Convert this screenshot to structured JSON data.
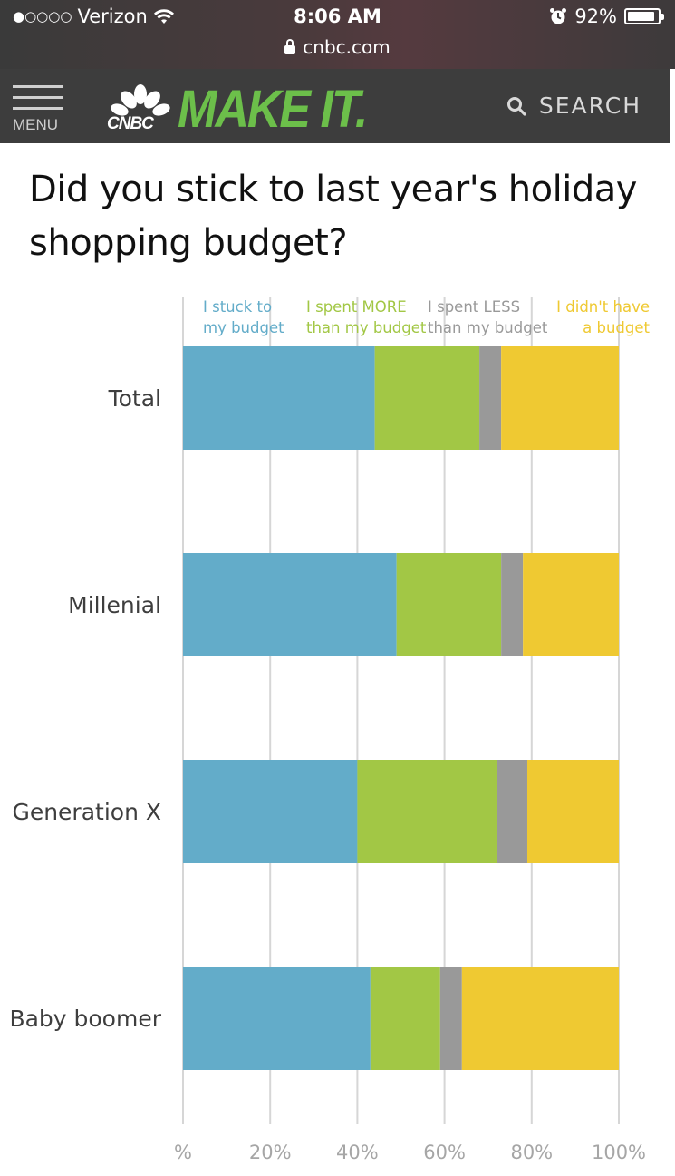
{
  "status_bar": {
    "signal": "●○○○○",
    "carrier": "Verizon",
    "time": "8:06 AM",
    "battery_text": "92%",
    "battery_level": 0.92,
    "url": "cnbc.com"
  },
  "header": {
    "menu_label": "MENU",
    "logo_network": "CNBC",
    "logo_text": "MAKE IT.",
    "search_label": "SEARCH",
    "colors": {
      "background": "#3d3d3d",
      "logo_green": "#6cbf4a"
    }
  },
  "chart_data": {
    "type": "bar",
    "orientation": "horizontal",
    "stacked": true,
    "title": "Did you stick to last year's holiday shopping budget?",
    "categories": [
      "Total",
      "Millenial",
      "Generation X",
      "Baby boomer"
    ],
    "series": [
      {
        "name": "I stuck to my budget",
        "legend_lines": [
          "I stuck to",
          "my budget"
        ],
        "color": "#63acc9",
        "values": [
          44,
          49,
          40,
          43
        ]
      },
      {
        "name": "I spent MORE than my budget",
        "legend_lines": [
          "I spent MORE",
          "than my budget"
        ],
        "color": "#a2c745",
        "values": [
          24,
          24,
          32,
          16
        ]
      },
      {
        "name": "I spent LESS than my budget",
        "legend_lines": [
          "I spent LESS",
          "than my budget"
        ],
        "color": "#999999",
        "values": [
          5,
          5,
          7,
          5
        ]
      },
      {
        "name": "I didn't have a budget",
        "legend_lines": [
          "I didn't have",
          "a budget"
        ],
        "color": "#efc932",
        "values": [
          27,
          22,
          21,
          36
        ]
      }
    ],
    "xlim": [
      0,
      100
    ],
    "xticks": [
      0,
      20,
      40,
      60,
      80,
      100
    ],
    "xtick_labels": [
      "%",
      "20%",
      "40%",
      "60%",
      "80%",
      "100%"
    ],
    "grid": true,
    "legend_position": "top"
  }
}
